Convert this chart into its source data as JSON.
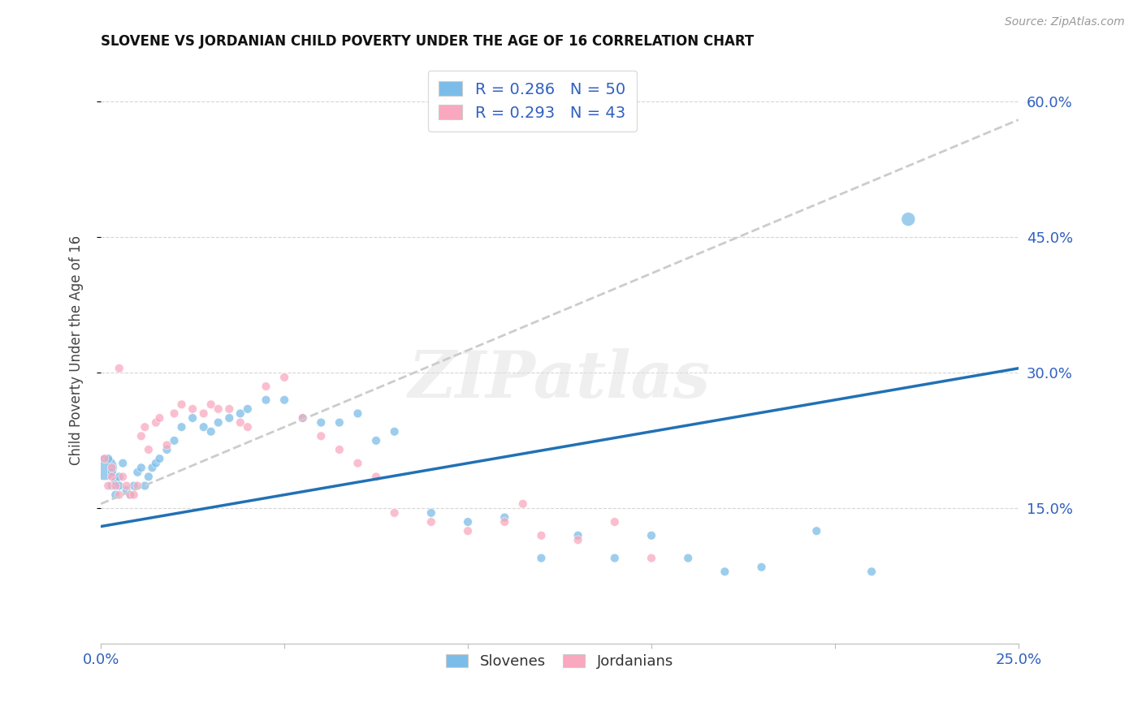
{
  "title": "SLOVENE VS JORDANIAN CHILD POVERTY UNDER THE AGE OF 16 CORRELATION CHART",
  "source": "Source: ZipAtlas.com",
  "ylabel": "Child Poverty Under the Age of 16",
  "xlim": [
    0.0,
    0.25
  ],
  "ylim": [
    0.0,
    0.65
  ],
  "ytick_positions": [
    0.15,
    0.3,
    0.45,
    0.6
  ],
  "right_ytick_labels": [
    "15.0%",
    "30.0%",
    "45.0%",
    "60.0%"
  ],
  "slovene_color": "#7bbde8",
  "jordanian_color": "#f9a8bf",
  "slovene_line_color": "#2171b5",
  "jordanian_line_color": "#cccccc",
  "legend_text_color": "#3060c0",
  "R_slovene": "0.286",
  "N_slovene": "50",
  "R_jordanian": "0.293",
  "N_jordanian": "43",
  "background_color": "#ffffff",
  "grid_color": "#cccccc",
  "watermark": "ZIPatlas",
  "slovene_x": [
    0.001,
    0.002,
    0.003,
    0.003,
    0.004,
    0.004,
    0.005,
    0.005,
    0.006,
    0.007,
    0.008,
    0.009,
    0.01,
    0.011,
    0.012,
    0.013,
    0.014,
    0.015,
    0.016,
    0.018,
    0.02,
    0.022,
    0.025,
    0.028,
    0.03,
    0.032,
    0.035,
    0.038,
    0.04,
    0.045,
    0.05,
    0.055,
    0.06,
    0.065,
    0.07,
    0.075,
    0.08,
    0.09,
    0.1,
    0.11,
    0.12,
    0.13,
    0.14,
    0.15,
    0.16,
    0.17,
    0.18,
    0.195,
    0.21,
    0.22
  ],
  "slovene_y": [
    0.195,
    0.205,
    0.175,
    0.19,
    0.165,
    0.18,
    0.175,
    0.185,
    0.2,
    0.17,
    0.165,
    0.175,
    0.19,
    0.195,
    0.175,
    0.185,
    0.195,
    0.2,
    0.205,
    0.215,
    0.225,
    0.24,
    0.25,
    0.24,
    0.235,
    0.245,
    0.25,
    0.255,
    0.26,
    0.27,
    0.27,
    0.25,
    0.245,
    0.245,
    0.255,
    0.225,
    0.235,
    0.145,
    0.135,
    0.14,
    0.095,
    0.12,
    0.095,
    0.12,
    0.095,
    0.08,
    0.085,
    0.125,
    0.08,
    0.47
  ],
  "slovene_size": [
    500,
    60,
    60,
    60,
    60,
    60,
    60,
    60,
    60,
    60,
    60,
    60,
    60,
    60,
    60,
    60,
    60,
    60,
    60,
    60,
    60,
    60,
    60,
    60,
    60,
    60,
    60,
    60,
    60,
    60,
    60,
    60,
    60,
    60,
    60,
    60,
    60,
    60,
    60,
    60,
    60,
    60,
    60,
    60,
    60,
    60,
    60,
    60,
    60,
    150
  ],
  "jordanian_x": [
    0.001,
    0.002,
    0.003,
    0.003,
    0.004,
    0.005,
    0.005,
    0.006,
    0.007,
    0.008,
    0.009,
    0.01,
    0.011,
    0.012,
    0.013,
    0.015,
    0.016,
    0.018,
    0.02,
    0.022,
    0.025,
    0.028,
    0.03,
    0.032,
    0.035,
    0.038,
    0.04,
    0.045,
    0.05,
    0.055,
    0.06,
    0.065,
    0.07,
    0.075,
    0.08,
    0.09,
    0.1,
    0.11,
    0.115,
    0.12,
    0.13,
    0.14,
    0.15
  ],
  "jordanian_y": [
    0.205,
    0.175,
    0.185,
    0.195,
    0.175,
    0.165,
    0.305,
    0.185,
    0.175,
    0.165,
    0.165,
    0.175,
    0.23,
    0.24,
    0.215,
    0.245,
    0.25,
    0.22,
    0.255,
    0.265,
    0.26,
    0.255,
    0.265,
    0.26,
    0.26,
    0.245,
    0.24,
    0.285,
    0.295,
    0.25,
    0.23,
    0.215,
    0.2,
    0.185,
    0.145,
    0.135,
    0.125,
    0.135,
    0.155,
    0.12,
    0.115,
    0.135,
    0.095
  ],
  "jordanian_size": [
    60,
    60,
    60,
    60,
    60,
    60,
    60,
    60,
    60,
    60,
    60,
    60,
    60,
    60,
    60,
    60,
    60,
    60,
    60,
    60,
    60,
    60,
    60,
    60,
    60,
    60,
    60,
    60,
    60,
    60,
    60,
    60,
    60,
    60,
    60,
    60,
    60,
    60,
    60,
    60,
    60,
    60,
    60
  ],
  "slovene_trendline_x0": 0.0,
  "slovene_trendline_y0": 0.13,
  "slovene_trendline_x1": 0.25,
  "slovene_trendline_y1": 0.305,
  "jordanian_trendline_x0": 0.0,
  "jordanian_trendline_y0": 0.155,
  "jordanian_trendline_x1": 0.25,
  "jordanian_trendline_y1": 0.58
}
